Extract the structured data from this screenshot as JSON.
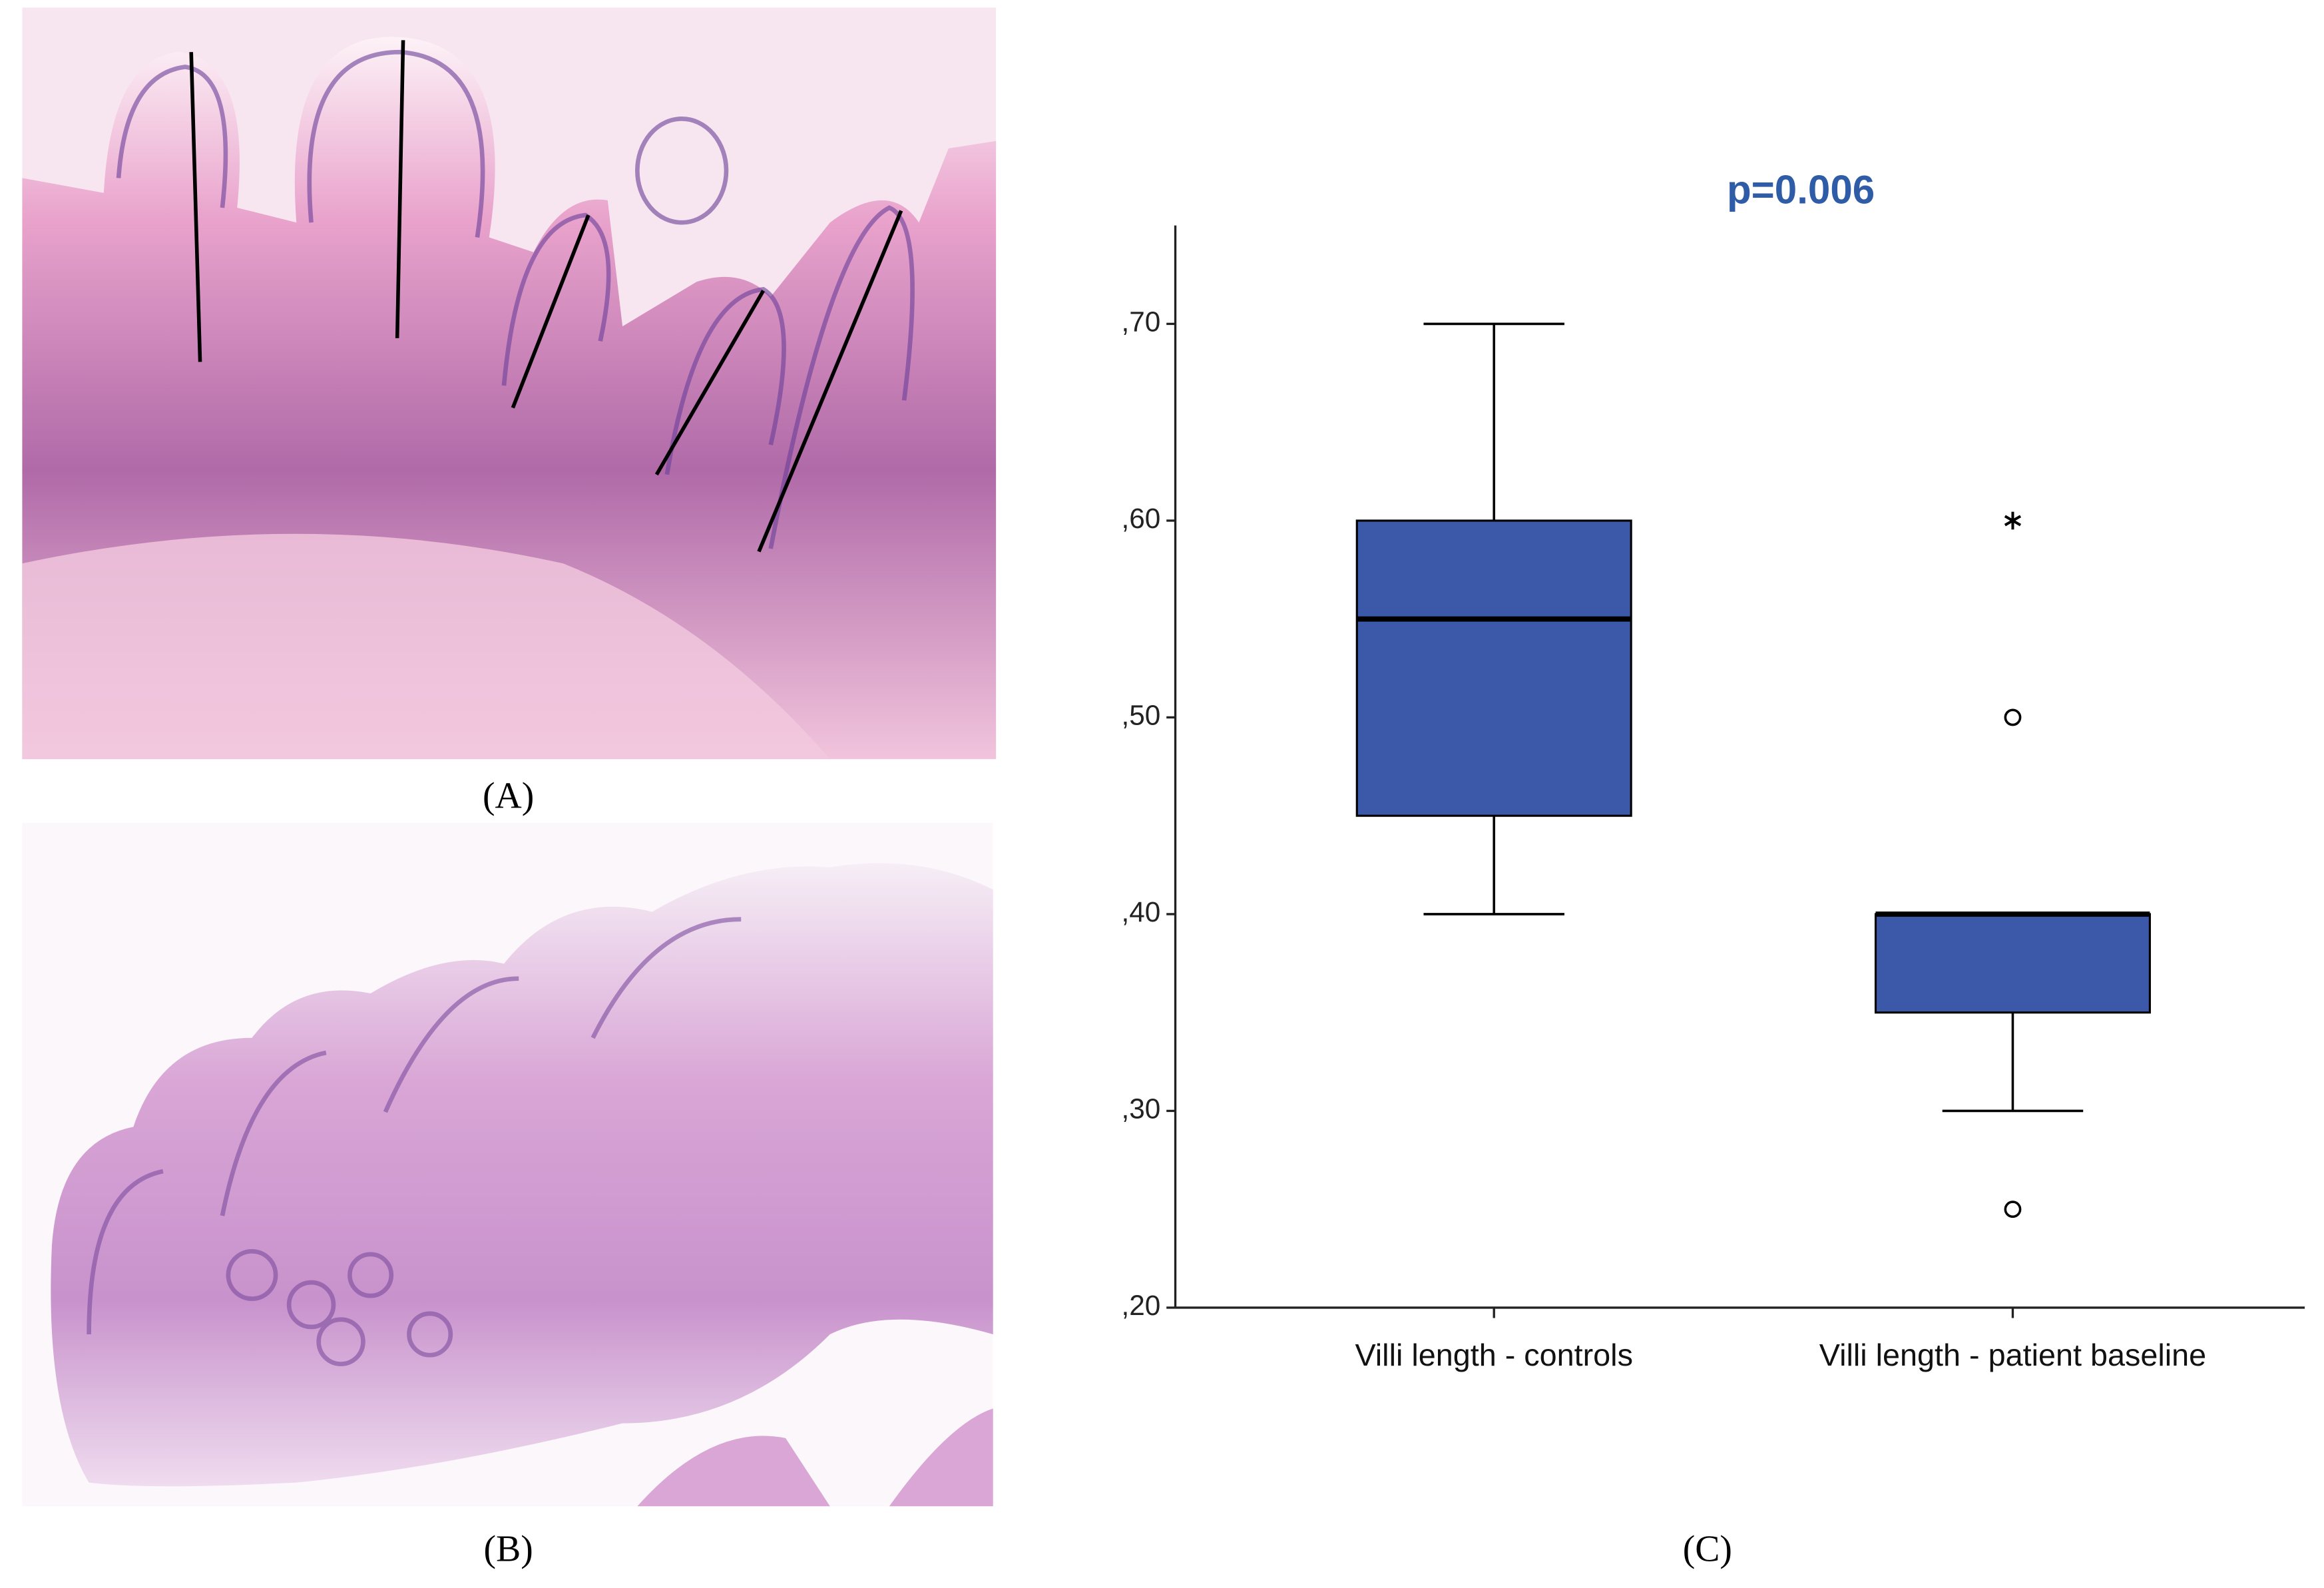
{
  "panel_labels": [
    "(A)",
    "(B)",
    "(C)"
  ],
  "chart_data": {
    "type": "box",
    "title": "p=0.006",
    "categories": [
      "Villi length - controls",
      "Villi length - patient baseline"
    ],
    "color": "#3c58a9",
    "boxes": [
      {
        "whislo": 0.4,
        "q1": 0.45,
        "med": 0.55,
        "q3": 0.6,
        "whishi": 0.7
      },
      {
        "whislo": 0.3,
        "q1": 0.35,
        "med": 0.4,
        "q3": 0.4,
        "whishi": 0.4,
        "outliers": [
          0.5,
          0.25
        ],
        "extremes": [
          0.6
        ]
      }
    ],
    "ylim": [
      0.2,
      0.75
    ],
    "yticks": [
      {
        "value": 0.2,
        "label": ",20"
      },
      {
        "value": 0.3,
        "label": ",30"
      },
      {
        "value": 0.4,
        "label": ",40"
      },
      {
        "value": 0.5,
        "label": ",50"
      },
      {
        "value": 0.6,
        "label": ",60"
      },
      {
        "value": 0.7,
        "label": ",70"
      }
    ],
    "grid": false
  }
}
